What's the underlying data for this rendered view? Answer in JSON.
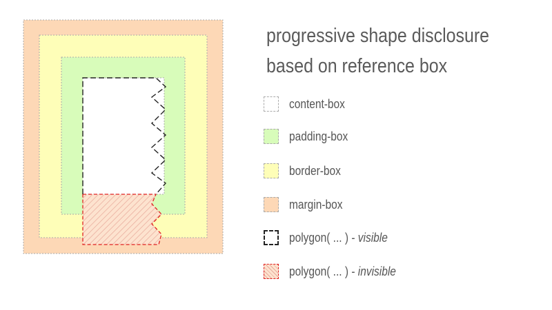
{
  "title": {
    "line1": "progressive shape disclosure",
    "line2": "based on reference box"
  },
  "colors": {
    "margin_box": "#fdd8b6",
    "border_box": "#fefeb8",
    "padding_box": "#d8fcba",
    "content_box": "#ffffff",
    "box_outline": "#aaaaaa",
    "polygon_visible": "#222222",
    "polygon_invisible": "#e02020"
  },
  "legend": [
    {
      "label": "content-box",
      "emphasis": "",
      "swatch": "content-box"
    },
    {
      "label": "padding-box",
      "emphasis": "",
      "swatch": "padding-box"
    },
    {
      "label": "border-box",
      "emphasis": "",
      "swatch": "border-box"
    },
    {
      "label": "margin-box",
      "emphasis": "",
      "swatch": "margin-box"
    },
    {
      "label": "polygon( ... ) - ",
      "emphasis": "visible",
      "swatch": "polygon-visible"
    },
    {
      "label": "polygon( ... ) - ",
      "emphasis": "invisible",
      "swatch": "polygon-invisible"
    }
  ]
}
